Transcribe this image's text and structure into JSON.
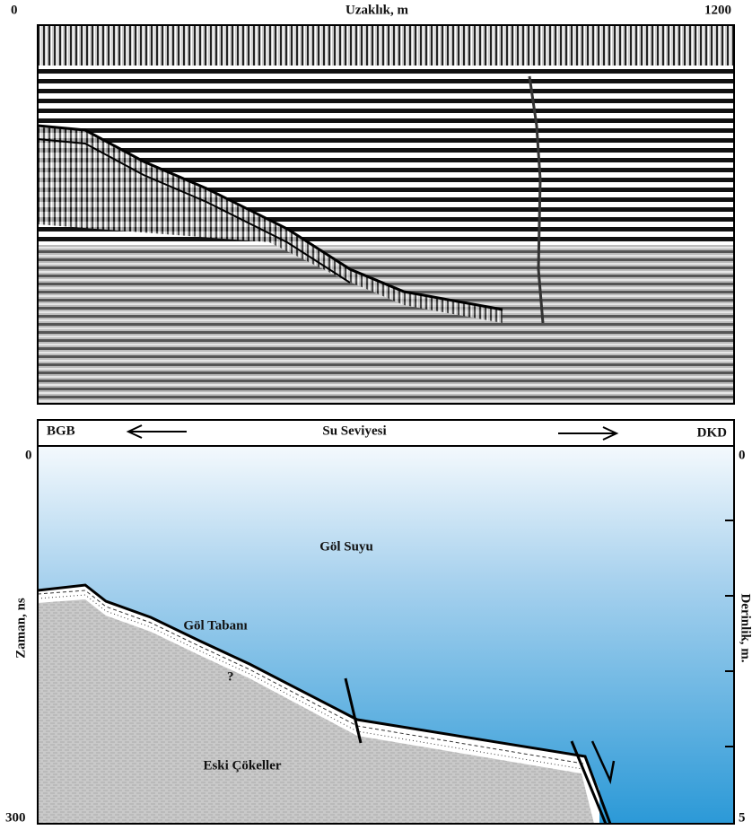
{
  "top_panel": {
    "axis_start": "0",
    "axis_title": "Uzaklık, m",
    "axis_end": "1200"
  },
  "bottom_panel": {
    "left_direction": "BGB",
    "center_label": "Su Seviyesi",
    "right_direction": "DKD",
    "left_axis": {
      "top": "0",
      "bottom": "300",
      "title": "Zaman, ns"
    },
    "right_axis": {
      "top": "0",
      "bottom": "5",
      "title": "Derinlik, m."
    },
    "labels": {
      "water": "Göl Suyu",
      "lake_bed": "Göl Tabanı",
      "question": "?",
      "old_sediments": "Eski Çökeller"
    }
  }
}
